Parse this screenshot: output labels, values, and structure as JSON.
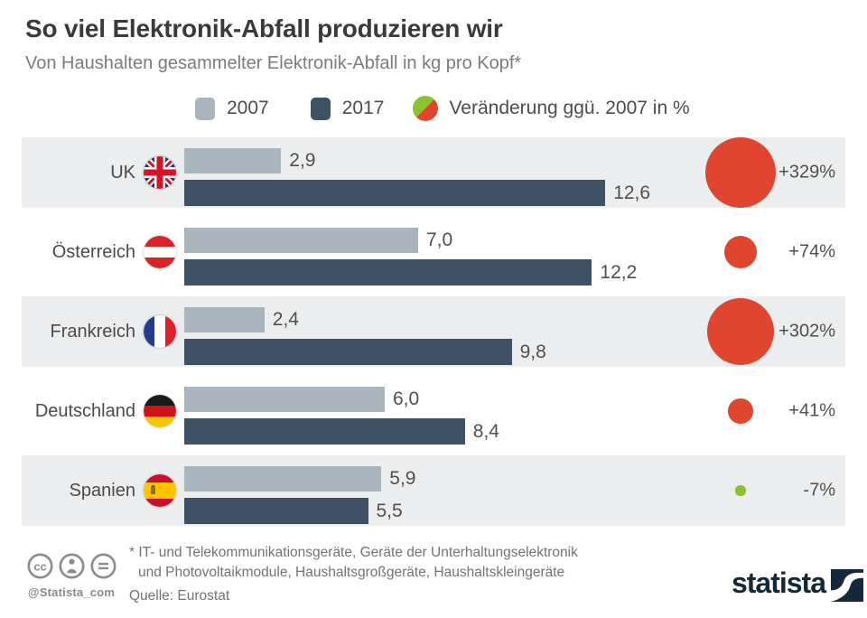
{
  "title": "So viel Elektronik-Abfall produzieren wir",
  "subtitle": "Von Haushalten gesammelter Elektronik-Abfall in kg pro Kopf*",
  "legend": {
    "label_2007": "2007",
    "label_2017": "2017",
    "label_change": "Veränderung ggü. 2007 in %"
  },
  "colors": {
    "bar_2007": "#a9b4bd",
    "bar_2017": "#3d5265",
    "increase_bubble": "#e0462f",
    "decrease_bubble": "#8bc22d",
    "row_background": "#ebedee",
    "logo_navy": "#14273b"
  },
  "rows": [
    {
      "country": "UK",
      "flag": "uk",
      "v2007": "2,9",
      "v2017": "12,6",
      "change": "+329%"
    },
    {
      "country": "Österreich",
      "flag": "austria",
      "v2007": "7,0",
      "v2017": "12,2",
      "change": "+74%"
    },
    {
      "country": "Frankreich",
      "flag": "france",
      "v2007": "2,4",
      "v2017": "9,8",
      "change": "+302%"
    },
    {
      "country": "Deutschland",
      "flag": "germany",
      "v2007": "6,0",
      "v2017": "8,4",
      "change": "+41%"
    },
    {
      "country": "Spanien",
      "flag": "spain",
      "v2007": "5,9",
      "v2017": "5,5",
      "change": "-7%"
    }
  ],
  "chart_data": {
    "type": "bar",
    "orientation": "horizontal",
    "title": "So viel Elektronik-Abfall produzieren wir",
    "subtitle": "Von Haushalten gesammelter Elektronik-Abfall in kg pro Kopf*",
    "unit": "kg pro Kopf",
    "categories": [
      "UK",
      "Österreich",
      "Frankreich",
      "Deutschland",
      "Spanien"
    ],
    "series": [
      {
        "name": "2007",
        "values": [
          2.9,
          7.0,
          2.4,
          6.0,
          5.9
        ]
      },
      {
        "name": "2017",
        "values": [
          12.6,
          12.2,
          9.8,
          8.4,
          5.5
        ]
      }
    ],
    "change_pct_vs_2007": [
      329,
      74,
      302,
      41,
      -7
    ],
    "legend_position": "top",
    "grid": false,
    "source": "Eurostat"
  },
  "footer": {
    "footnote_line1": "* IT- und Telekommunikationsgeräte, Geräte der Unterhaltungselektronik",
    "footnote_line2": "und Photovoltaikmodule, Haushaltsgroßgeräte, Haushaltskleingeräte",
    "source": "Quelle: Eurostat",
    "handle": "@Statista_com",
    "logo_text": "statista"
  }
}
